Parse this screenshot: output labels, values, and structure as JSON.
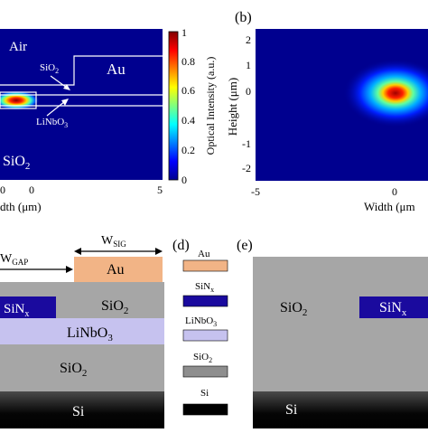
{
  "panels": {
    "a": {
      "labels": {
        "air": "Air",
        "au": "Au",
        "sio2_top": "SiO",
        "linbo3": "LiNbO",
        "sio2_bottom": "SiO"
      },
      "xlabel": "dth (μm)",
      "xticks": [
        "0",
        "0",
        "5"
      ],
      "colorbar": {
        "label": "Optical Intensity (a.u.)",
        "ticks": [
          "1",
          "0.8",
          "0.6",
          "0.4",
          "0.2",
          "0"
        ]
      }
    },
    "b": {
      "panel_label": "(b)",
      "xlabel": "Width (μm",
      "ylabel": "Height (μm)",
      "xticks": [
        "-5",
        "0"
      ],
      "yticks": [
        "2",
        "1",
        "0",
        "-1",
        "-2"
      ]
    },
    "c": {
      "wgap": "W",
      "wgap_sub": "GAP",
      "wsig": "W",
      "wsig_sub": "SIG",
      "layers": {
        "au": "Au",
        "sinx": "SiN",
        "sio2_top": "SiO",
        "linbo3": "LiNbO",
        "sio2_bottom": "SiO",
        "si": "Si"
      }
    },
    "d": {
      "panel_label": "(d)",
      "legend": [
        "Au",
        "SiN",
        "LiNbO",
        "SiO",
        "Si"
      ],
      "colors": [
        "#f2b486",
        "#1a0a9e",
        "#c6c2ef",
        "#8e8e8e",
        "#000000"
      ]
    },
    "e": {
      "panel_label": "(e)",
      "labels": {
        "sio2": "SiO",
        "sinx": "SiN",
        "si": "Si"
      }
    },
    "subscripts": {
      "two": "2",
      "three": "3",
      "x": "x"
    }
  }
}
